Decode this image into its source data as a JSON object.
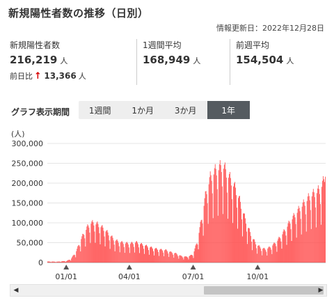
{
  "header": {
    "title": "新規陽性者数の推移（日別）",
    "updated": "情報更新日：2022年12月28日"
  },
  "stats": {
    "new_cases": {
      "label": "新規陽性者数",
      "value": "216,219",
      "unit": "人"
    },
    "day_diff": {
      "label": "前日比",
      "arrow": "↑",
      "value": "13,366",
      "unit": "人"
    },
    "weekly_avg": {
      "label": "1週間平均",
      "value": "168,949",
      "unit": "人"
    },
    "prev_week_avg": {
      "label": "前週平均",
      "value": "154,504",
      "unit": "人"
    }
  },
  "period": {
    "label": "グラフ表示期間",
    "tabs": [
      "1週間",
      "1か月",
      "3か月",
      "1年"
    ],
    "active": 3
  },
  "colors": {
    "bar": "#ff4d4d",
    "grid": "#e4e4e4",
    "accent_up": "#d60000",
    "tab_active": "#555b60"
  },
  "chart_data": {
    "type": "bar",
    "unit_label": "(人)",
    "ylim": [
      0,
      300000
    ],
    "yticks": [
      "0",
      "50,000",
      "100,000",
      "150,000",
      "200,000",
      "250,000",
      "300,000"
    ],
    "xticks": [
      {
        "label": "01/01",
        "day": 27
      },
      {
        "label": "04/01",
        "day": 117
      },
      {
        "label": "07/01",
        "day": 208
      },
      {
        "label": "10/01",
        "day": 300
      }
    ],
    "days": 397,
    "anchors": [
      [
        0,
        2500
      ],
      [
        14,
        2000
      ],
      [
        24,
        3500
      ],
      [
        27,
        3500
      ],
      [
        34,
        10000
      ],
      [
        41,
        28000
      ],
      [
        48,
        58000
      ],
      [
        56,
        84000
      ],
      [
        62,
        96000
      ],
      [
        68,
        95000
      ],
      [
        74,
        90000
      ],
      [
        81,
        80000
      ],
      [
        88,
        68000
      ],
      [
        95,
        55000
      ],
      [
        102,
        50000
      ],
      [
        110,
        47000
      ],
      [
        118,
        46000
      ],
      [
        126,
        49000
      ],
      [
        134,
        44000
      ],
      [
        141,
        40000
      ],
      [
        148,
        36000
      ],
      [
        155,
        33000
      ],
      [
        162,
        31000
      ],
      [
        169,
        30000
      ],
      [
        176,
        25000
      ],
      [
        183,
        22000
      ],
      [
        190,
        16000
      ],
      [
        197,
        14000
      ],
      [
        203,
        16000
      ],
      [
        208,
        22000
      ],
      [
        214,
        55000
      ],
      [
        220,
        110000
      ],
      [
        226,
        170000
      ],
      [
        232,
        205000
      ],
      [
        238,
        220000
      ],
      [
        244,
        228000
      ],
      [
        250,
        235000
      ],
      [
        256,
        215000
      ],
      [
        262,
        198000
      ],
      [
        268,
        178000
      ],
      [
        274,
        150000
      ],
      [
        280,
        115000
      ],
      [
        286,
        85000
      ],
      [
        292,
        60000
      ],
      [
        298,
        44000
      ],
      [
        304,
        36000
      ],
      [
        311,
        32000
      ],
      [
        318,
        38000
      ],
      [
        325,
        48000
      ],
      [
        332,
        62000
      ],
      [
        339,
        80000
      ],
      [
        346,
        100000
      ],
      [
        353,
        116000
      ],
      [
        360,
        132000
      ],
      [
        367,
        146000
      ],
      [
        374,
        160000
      ],
      [
        381,
        168000
      ],
      [
        388,
        176000
      ],
      [
        394,
        198000
      ],
      [
        396,
        216219
      ]
    ]
  },
  "scrollbar": {
    "left_icon": "arrow-left-icon",
    "right_icon": "arrow-right-icon",
    "thumb_start": 0.62
  }
}
